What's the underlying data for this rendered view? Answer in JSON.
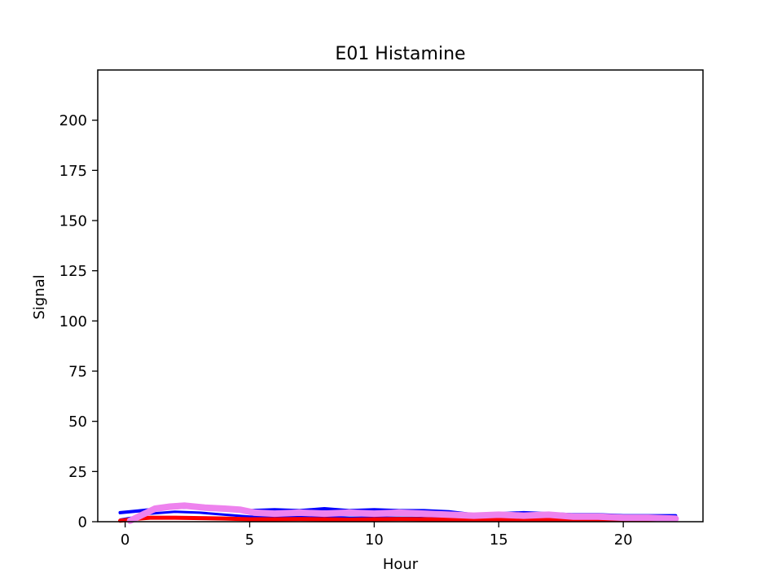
{
  "chart_data": {
    "type": "line",
    "title": "E01 Histamine",
    "xlabel": "Hour",
    "ylabel": "Signal",
    "xlim": [
      -1.1,
      23.2
    ],
    "ylim": [
      0,
      225
    ],
    "xticks": [
      0,
      5,
      10,
      15,
      20
    ],
    "yticks": [
      0,
      25,
      50,
      75,
      100,
      125,
      150,
      175,
      200
    ],
    "grid": false,
    "legend": "none",
    "series": [
      {
        "color": "#0000ff",
        "linewidth": 4,
        "x": [
          -0.2,
          0.5,
          1,
          2,
          3,
          4,
          5,
          6,
          7,
          8,
          9,
          10,
          11,
          12,
          13,
          14,
          15,
          16,
          17,
          18,
          19,
          20,
          21,
          22.1
        ],
        "y": [
          4.5,
          5.3,
          6.0,
          7.0,
          7.5,
          6.5,
          5.5,
          6.0,
          5.5,
          6.5,
          5.5,
          6.0,
          5.5,
          5.5,
          5.0,
          3.5,
          4.0,
          4.5,
          4.0,
          3.5,
          3.5,
          3.0,
          3.0,
          3.0
        ]
      },
      {
        "color": "#0000ff",
        "linewidth": 3,
        "x": [
          -0.2,
          0.5,
          1,
          2,
          3,
          4,
          5,
          6,
          7,
          8,
          9,
          10,
          11,
          12,
          13,
          14,
          15,
          16,
          17,
          18,
          19,
          20,
          21,
          22.1
        ],
        "y": [
          1.0,
          2.5,
          4.0,
          5.0,
          4.5,
          3.5,
          2.5,
          2.5,
          2.5,
          2.5,
          2.0,
          2.0,
          2.0,
          1.8,
          1.5,
          1.3,
          1.0,
          1.0,
          1.2,
          1.0,
          1.2,
          1.2,
          1.2,
          1.2
        ]
      },
      {
        "color": "#ff0000",
        "linewidth": 5,
        "x": [
          -0.2,
          0.5,
          1,
          2,
          3,
          4,
          5,
          6,
          7,
          8,
          9,
          10,
          11,
          12,
          13,
          14,
          15,
          16,
          17,
          18,
          19,
          20,
          21,
          22.1
        ],
        "y": [
          0.5,
          1.5,
          2.0,
          2.0,
          1.8,
          1.6,
          1.2,
          1.2,
          1.3,
          1.2,
          1.0,
          1.2,
          1.3,
          1.2,
          1.0,
          1.0,
          0.8,
          0.8,
          0.8,
          0.8,
          0.8,
          0.8,
          0.8,
          0.8
        ]
      },
      {
        "color": "#ee82ee",
        "linewidth": 8,
        "x": [
          0.2,
          0.7,
          1.2,
          1.8,
          2.4,
          3.2,
          4,
          4.6,
          5.2,
          6,
          7,
          8,
          9,
          10,
          11,
          12,
          13,
          14,
          15,
          16,
          17,
          18,
          19,
          20,
          21,
          22.1
        ],
        "y": [
          0.5,
          3.5,
          6.5,
          7.5,
          8.0,
          7.0,
          6.5,
          6.0,
          4.5,
          4.0,
          4.5,
          4.0,
          4.5,
          4.0,
          4.5,
          4.0,
          3.5,
          3.0,
          3.5,
          3.0,
          3.5,
          2.5,
          2.5,
          2.0,
          2.0,
          1.5
        ]
      }
    ]
  }
}
